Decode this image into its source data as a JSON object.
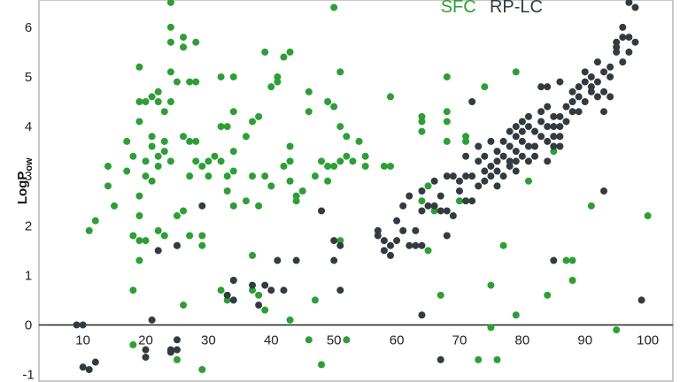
{
  "chart_data": {
    "type": "scatter",
    "ylabel": "LogP",
    "ylabel_sub": "ow",
    "xlim": [
      3,
      104
    ],
    "ylim": [
      -1.15,
      6.55
    ],
    "x_ticks": [
      10,
      20,
      30,
      40,
      50,
      60,
      70,
      80,
      90,
      100
    ],
    "y_ticks": [
      -1,
      0,
      1,
      2,
      3,
      4,
      5,
      6
    ],
    "grid": false,
    "legend_position": "top-right",
    "colors": {
      "SFC": "#2e9e36",
      "RP-LC": "#333a40",
      "zero_line": "#222222",
      "frame": "#c8c8c8"
    },
    "series": [
      {
        "name": "SFC",
        "points": [
          [
            11,
            1.9
          ],
          [
            12,
            2.1
          ],
          [
            14,
            3.2
          ],
          [
            14,
            2.8
          ],
          [
            15,
            2.4
          ],
          [
            17,
            3.7
          ],
          [
            17,
            3.1
          ],
          [
            18,
            3.4
          ],
          [
            18,
            1.8
          ],
          [
            18,
            0.7
          ],
          [
            18,
            -0.4
          ],
          [
            19,
            5.2
          ],
          [
            19,
            4.5
          ],
          [
            19,
            4.1
          ],
          [
            19,
            2.6
          ],
          [
            19,
            2.2
          ],
          [
            19,
            1.7
          ],
          [
            19,
            1.3
          ],
          [
            20,
            4.5
          ],
          [
            20,
            3.3
          ],
          [
            20,
            3.0
          ],
          [
            20,
            1.7
          ],
          [
            21,
            4.6
          ],
          [
            21,
            3.8
          ],
          [
            21,
            3.6
          ],
          [
            21,
            2.9
          ],
          [
            22,
            4.7
          ],
          [
            22,
            4.5
          ],
          [
            22,
            3.4
          ],
          [
            22,
            3.2
          ],
          [
            22,
            1.9
          ],
          [
            23,
            4.3
          ],
          [
            23,
            3.7
          ],
          [
            23,
            3.5
          ],
          [
            23,
            1.8
          ],
          [
            24,
            6.5
          ],
          [
            24,
            6.0
          ],
          [
            24,
            5.7
          ],
          [
            24,
            5.1
          ],
          [
            24,
            4.5
          ],
          [
            24,
            3.3
          ],
          [
            25,
            4.9
          ],
          [
            25,
            2.2
          ],
          [
            25,
            1.6
          ],
          [
            25,
            -0.7
          ],
          [
            26,
            5.8
          ],
          [
            26,
            5.6
          ],
          [
            26,
            3.8
          ],
          [
            26,
            2.3
          ],
          [
            26,
            0.4
          ],
          [
            27,
            4.9
          ],
          [
            27,
            3.7
          ],
          [
            27,
            3.0
          ],
          [
            27,
            1.8
          ],
          [
            28,
            5.7
          ],
          [
            28,
            4.9
          ],
          [
            28,
            3.7
          ],
          [
            28,
            3.3
          ],
          [
            29,
            3.2
          ],
          [
            29,
            1.8
          ],
          [
            29,
            1.6
          ],
          [
            29,
            -0.9
          ],
          [
            30,
            3.3
          ],
          [
            30,
            3.0
          ],
          [
            31,
            3.4
          ],
          [
            32,
            5.0
          ],
          [
            32,
            4.0
          ],
          [
            32,
            3.3
          ],
          [
            32,
            0.7
          ],
          [
            33,
            4.0
          ],
          [
            33,
            3.0
          ],
          [
            33,
            2.7
          ],
          [
            33,
            0.5
          ],
          [
            34,
            5.0
          ],
          [
            34,
            4.3
          ],
          [
            34,
            3.5
          ],
          [
            34,
            3.1
          ],
          [
            34,
            2.4
          ],
          [
            34,
            0.9
          ],
          [
            36,
            3.8
          ],
          [
            36,
            2.5
          ],
          [
            37,
            4.1
          ],
          [
            37,
            3.0
          ],
          [
            37,
            1.4
          ],
          [
            37,
            0.7
          ],
          [
            38,
            4.2
          ],
          [
            38,
            2.4
          ],
          [
            38,
            0.6
          ],
          [
            39,
            5.5
          ],
          [
            39,
            3.0
          ],
          [
            39,
            0.3
          ],
          [
            40,
            4.8
          ],
          [
            40,
            2.8
          ],
          [
            41,
            5.0
          ],
          [
            41,
            4.9
          ],
          [
            42,
            5.4
          ],
          [
            42,
            3.2
          ],
          [
            43,
            5.5
          ],
          [
            43,
            3.6
          ],
          [
            43,
            3.3
          ],
          [
            43,
            2.9
          ],
          [
            43,
            0.1
          ],
          [
            44,
            2.6
          ],
          [
            44,
            2.5
          ],
          [
            45,
            2.7
          ],
          [
            46,
            4.7
          ],
          [
            46,
            4.3
          ],
          [
            46,
            -0.3
          ],
          [
            47,
            3.0
          ],
          [
            47,
            0.5
          ],
          [
            48,
            3.3
          ],
          [
            48,
            -0.8
          ],
          [
            49,
            4.5
          ],
          [
            49,
            3.2
          ],
          [
            49,
            2.9
          ],
          [
            50,
            6.4
          ],
          [
            50,
            4.4
          ],
          [
            50,
            3.2
          ],
          [
            51,
            5.1
          ],
          [
            51,
            4.0
          ],
          [
            51,
            3.3
          ],
          [
            51,
            1.7
          ],
          [
            52,
            3.8
          ],
          [
            52,
            3.4
          ],
          [
            52,
            -0.3
          ],
          [
            53,
            3.3
          ],
          [
            54,
            3.7
          ],
          [
            55,
            3.4
          ],
          [
            55,
            3.2
          ],
          [
            58,
            3.2
          ],
          [
            59,
            4.6
          ],
          [
            59,
            3.2
          ],
          [
            64,
            4.2
          ],
          [
            64,
            4.1
          ],
          [
            64,
            3.9
          ],
          [
            64,
            2.5
          ],
          [
            65,
            2.8
          ],
          [
            65,
            1.5
          ],
          [
            66,
            2.3
          ],
          [
            67,
            0.6
          ],
          [
            68,
            5.0
          ],
          [
            68,
            4.3
          ],
          [
            68,
            4.1
          ],
          [
            68,
            3.7
          ],
          [
            70,
            2.5
          ],
          [
            71,
            3.7
          ],
          [
            71,
            3.8
          ],
          [
            73,
            -0.7
          ],
          [
            74,
            4.8
          ],
          [
            75,
            0.8
          ],
          [
            75,
            -0.05
          ],
          [
            76,
            -0.7
          ],
          [
            77,
            1.6
          ],
          [
            79,
            0.2
          ],
          [
            79,
            5.1
          ],
          [
            80,
            4.1
          ],
          [
            81,
            2.9
          ],
          [
            82,
            3.9
          ],
          [
            84,
            0.6
          ],
          [
            85,
            3.5
          ],
          [
            87,
            1.3
          ],
          [
            88,
            1.3
          ],
          [
            88,
            0.9
          ],
          [
            91,
            2.4
          ],
          [
            95,
            -0.1
          ],
          [
            100,
            2.2
          ]
        ]
      },
      {
        "name": "RP-LC",
        "points": [
          [
            9,
            0.0
          ],
          [
            10,
            0.0
          ],
          [
            10,
            -0.85
          ],
          [
            11,
            -0.9
          ],
          [
            12,
            -0.75
          ],
          [
            20,
            -0.5
          ],
          [
            20,
            -0.65
          ],
          [
            21,
            0.1
          ],
          [
            22,
            1.5
          ],
          [
            24,
            -0.5
          ],
          [
            24,
            -0.55
          ],
          [
            25,
            1.6
          ],
          [
            25,
            -0.3
          ],
          [
            25,
            -0.5
          ],
          [
            29,
            2.4
          ],
          [
            33,
            0.6
          ],
          [
            34,
            0.9
          ],
          [
            34,
            0.5
          ],
          [
            37,
            0.8
          ],
          [
            38,
            0.4
          ],
          [
            39,
            0.8
          ],
          [
            40,
            0.7
          ],
          [
            41,
            1.3
          ],
          [
            42,
            0.7
          ],
          [
            44,
            1.3
          ],
          [
            48,
            2.3
          ],
          [
            50,
            1.7
          ],
          [
            50,
            1.3
          ],
          [
            51,
            1.6
          ],
          [
            51,
            0.7
          ],
          [
            57,
            1.9
          ],
          [
            57,
            1.8
          ],
          [
            58,
            1.7
          ],
          [
            58,
            1.5
          ],
          [
            59,
            1.6
          ],
          [
            59,
            1.4
          ],
          [
            60,
            2.1
          ],
          [
            60,
            1.7
          ],
          [
            61,
            2.4
          ],
          [
            61,
            1.9
          ],
          [
            62,
            2.6
          ],
          [
            62,
            1.6
          ],
          [
            63,
            1.9
          ],
          [
            63,
            1.6
          ],
          [
            64,
            2.7
          ],
          [
            64,
            2.3
          ],
          [
            64,
            1.6
          ],
          [
            64,
            0.2
          ],
          [
            65,
            2.4
          ],
          [
            66,
            2.9
          ],
          [
            66,
            2.4
          ],
          [
            67,
            2.6
          ],
          [
            67,
            2.3
          ],
          [
            67,
            -0.7
          ],
          [
            68,
            3.0
          ],
          [
            68,
            2.3
          ],
          [
            68,
            1.8
          ],
          [
            69,
            2.2
          ],
          [
            69,
            3.0
          ],
          [
            70,
            2.9
          ],
          [
            70,
            2.7
          ],
          [
            71,
            3.0
          ],
          [
            71,
            2.5
          ],
          [
            71,
            3.4
          ],
          [
            72,
            3.0
          ],
          [
            72,
            2.5
          ],
          [
            72,
            4.5
          ],
          [
            73,
            3.3
          ],
          [
            73,
            2.8
          ],
          [
            73,
            3.6
          ],
          [
            74,
            3.1
          ],
          [
            74,
            2.9
          ],
          [
            74,
            3.4
          ],
          [
            75,
            3.2
          ],
          [
            75,
            3.0
          ],
          [
            75,
            3.7
          ],
          [
            76,
            3.1
          ],
          [
            76,
            3.3
          ],
          [
            76,
            2.8
          ],
          [
            76,
            3.5
          ],
          [
            77,
            3.0
          ],
          [
            77,
            3.4
          ],
          [
            77,
            3.7
          ],
          [
            78,
            3.2
          ],
          [
            78,
            3.6
          ],
          [
            78,
            3.9
          ],
          [
            78,
            3.3
          ],
          [
            79,
            3.1
          ],
          [
            79,
            3.5
          ],
          [
            79,
            4.0
          ],
          [
            79,
            3.8
          ],
          [
            79,
            3.3
          ],
          [
            80,
            3.4
          ],
          [
            80,
            3.7
          ],
          [
            80,
            4.1
          ],
          [
            80,
            3.9
          ],
          [
            81,
            3.6
          ],
          [
            81,
            3.3
          ],
          [
            81,
            4.0
          ],
          [
            81,
            4.2
          ],
          [
            82,
            3.9
          ],
          [
            82,
            3.6
          ],
          [
            82,
            3.4
          ],
          [
            83,
            4.1
          ],
          [
            83,
            3.8
          ],
          [
            83,
            4.8
          ],
          [
            83,
            4.3
          ],
          [
            84,
            4.0
          ],
          [
            84,
            3.7
          ],
          [
            84,
            4.4
          ],
          [
            84,
            4.8
          ],
          [
            84,
            3.3
          ],
          [
            85,
            4.0
          ],
          [
            85,
            3.8
          ],
          [
            85,
            3.6
          ],
          [
            85,
            4.2
          ],
          [
            85,
            1.3
          ],
          [
            86,
            4.2
          ],
          [
            86,
            3.8
          ],
          [
            86,
            3.6
          ],
          [
            86,
            4.9
          ],
          [
            86,
            4.0
          ],
          [
            87,
            4.4
          ],
          [
            87,
            4.1
          ],
          [
            88,
            4.7
          ],
          [
            88,
            4.5
          ],
          [
            88,
            4.3
          ],
          [
            89,
            4.6
          ],
          [
            89,
            4.3
          ],
          [
            89,
            4.8
          ],
          [
            90,
            4.5
          ],
          [
            90,
            5.1
          ],
          [
            90,
            4.9
          ],
          [
            91,
            4.7
          ],
          [
            91,
            5.0
          ],
          [
            91,
            4.8
          ],
          [
            92,
            4.9
          ],
          [
            92,
            5.3
          ],
          [
            92,
            4.6
          ],
          [
            93,
            5.1
          ],
          [
            93,
            4.7
          ],
          [
            93,
            4.3
          ],
          [
            93,
            2.7
          ],
          [
            94,
            5.2
          ],
          [
            94,
            4.6
          ],
          [
            94,
            5.0
          ],
          [
            95,
            5.6
          ],
          [
            95,
            5.5
          ],
          [
            95,
            5.7
          ],
          [
            96,
            5.8
          ],
          [
            96,
            6.0
          ],
          [
            96,
            5.3
          ],
          [
            97,
            5.5
          ],
          [
            97,
            5.8
          ],
          [
            97,
            6.5
          ],
          [
            98,
            6.4
          ],
          [
            98,
            5.7
          ],
          [
            99,
            0.5
          ]
        ]
      }
    ]
  }
}
